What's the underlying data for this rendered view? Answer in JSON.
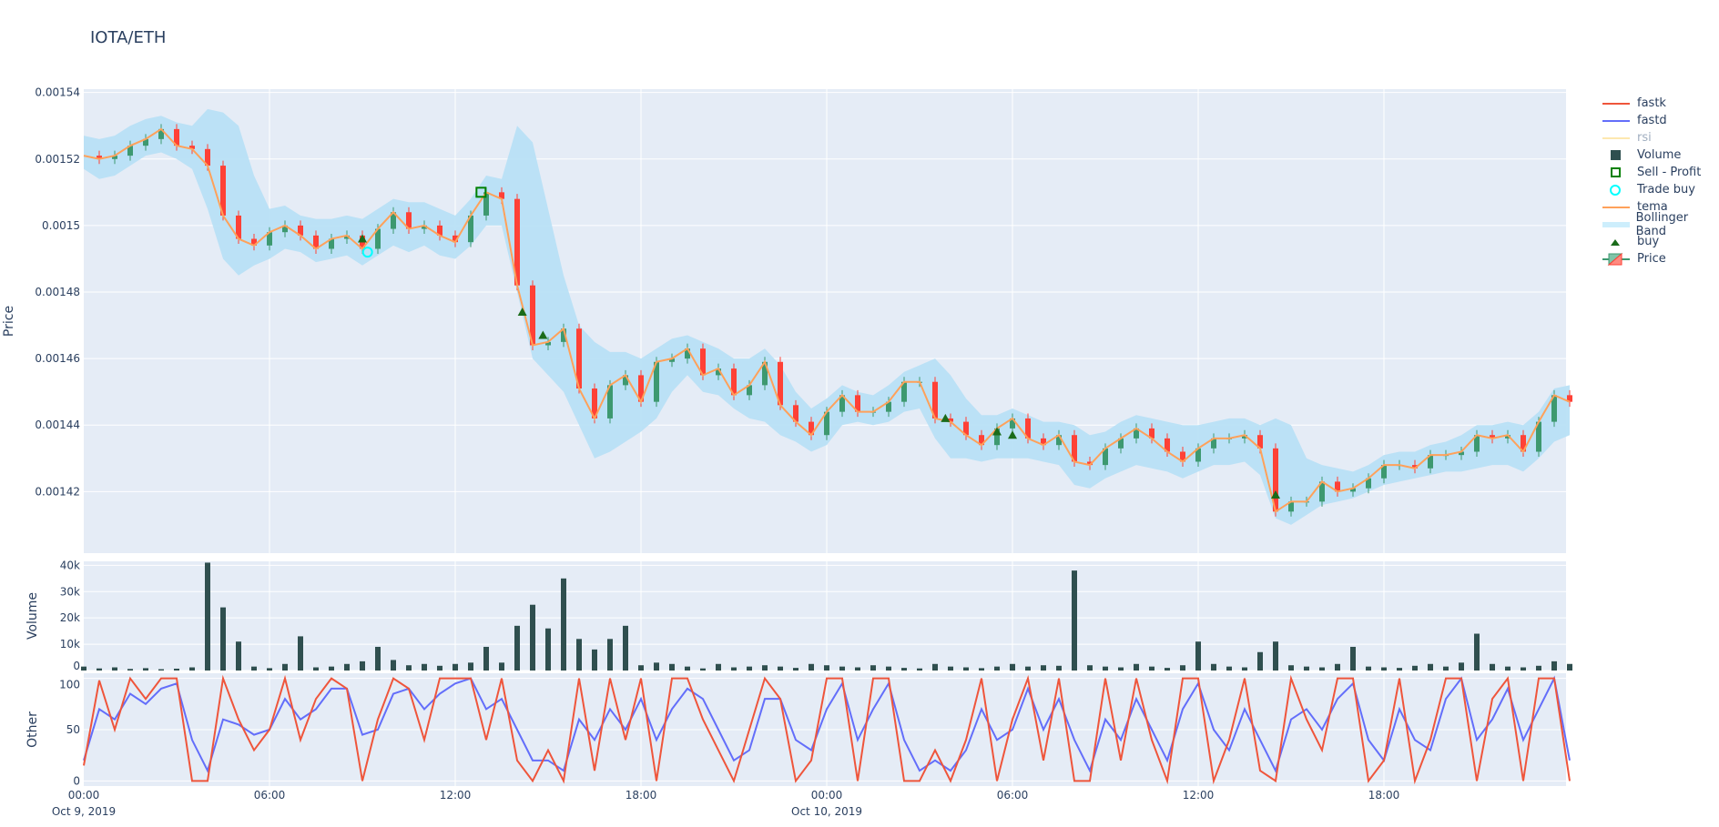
{
  "title": "IOTA/ETH",
  "colors": {
    "plot_bg": "#e5ecf6",
    "grid": "#ffffff",
    "fastk": "#ef553b",
    "fastd": "#636efa",
    "rsi": "#fde8b0",
    "volume": "#2f4f4f",
    "sell_profit": "#008000",
    "trade_buy": "#00ffff",
    "tema": "#ffa15a",
    "bollinger": "#b8e0f5",
    "buy": "#1a6b1a",
    "increasing": "#3d9970",
    "decreasing": "#ff4136"
  },
  "legend": [
    {
      "name": "fastk",
      "icon": "line",
      "dim": false
    },
    {
      "name": "fastd",
      "icon": "line",
      "dim": false
    },
    {
      "name": "rsi",
      "icon": "line",
      "dim": true
    },
    {
      "name": "Volume",
      "icon": "square",
      "dim": false
    },
    {
      "name": "Sell - Profit",
      "icon": "square-open",
      "dim": false
    },
    {
      "name": "Trade buy",
      "icon": "circle-open",
      "dim": false
    },
    {
      "name": "tema",
      "icon": "line",
      "dim": false
    },
    {
      "name": "Bollinger Band",
      "icon": "band",
      "dim": false
    },
    {
      "name": "buy",
      "icon": "triangle-up",
      "dim": false
    },
    {
      "name": "Price",
      "icon": "candlestick",
      "dim": false
    }
  ],
  "chart_data": {
    "type": "line",
    "title": "IOTA/ETH",
    "xaxis": {
      "range": [
        "2019-10-09 00:00",
        "2019-10-10 23:55"
      ],
      "ticks": [
        {
          "label": "00:00",
          "sub": "Oct 9, 2019",
          "hour": 0
        },
        {
          "label": "06:00",
          "sub": "",
          "hour": 6
        },
        {
          "label": "12:00",
          "sub": "",
          "hour": 12
        },
        {
          "label": "18:00",
          "sub": "",
          "hour": 18
        },
        {
          "label": "00:00",
          "sub": "Oct 10, 2019",
          "hour": 24
        },
        {
          "label": "06:00",
          "sub": "",
          "hour": 30
        },
        {
          "label": "12:00",
          "sub": "",
          "hour": 36
        },
        {
          "label": "18:00",
          "sub": "",
          "hour": 42
        }
      ],
      "interval_minutes": 30
    },
    "panels": {
      "price": {
        "ylabel": "Price",
        "ylim": [
          0.0014015,
          0.001541
        ],
        "ticks": [
          0.00142,
          0.00144,
          0.00146,
          0.00148,
          0.0015,
          0.00152,
          0.00154
        ],
        "tick_labels": [
          "0.00142",
          "0.00144",
          "0.00146",
          "0.00148",
          "0.0015",
          "0.00152",
          "0.00154"
        ]
      },
      "volume": {
        "ylabel": "Volume",
        "ylim": [
          0,
          41500
        ],
        "ticks": [
          0,
          10000,
          20000,
          30000,
          40000
        ],
        "tick_labels": [
          "0",
          "10k",
          "20k",
          "30k",
          "40k"
        ]
      },
      "other": {
        "ylabel": "Other",
        "ylim": [
          -5,
          105
        ],
        "ticks": [
          0,
          50,
          100
        ],
        "tick_labels": [
          "0",
          "50",
          "100"
        ]
      }
    },
    "close": [
      0.001521,
      0.00152,
      0.001521,
      0.001524,
      0.001526,
      0.001529,
      0.001524,
      0.001523,
      0.001518,
      0.001503,
      0.001496,
      0.001494,
      0.001498,
      0.0015,
      0.001497,
      0.001493,
      0.001496,
      0.001497,
      0.001493,
      0.001499,
      0.001504,
      0.001499,
      0.0015,
      0.001497,
      0.001495,
      0.001503,
      0.00151,
      0.001508,
      0.001482,
      0.001464,
      0.001465,
      0.001469,
      0.001451,
      0.001442,
      0.001452,
      0.001455,
      0.001447,
      0.001459,
      0.00146,
      0.001463,
      0.001455,
      0.001457,
      0.001449,
      0.001452,
      0.001459,
      0.001446,
      0.001441,
      0.001437,
      0.001444,
      0.001449,
      0.001444,
      0.001444,
      0.001447,
      0.001453,
      0.001453,
      0.001442,
      0.001441,
      0.001437,
      0.001434,
      0.001439,
      0.001442,
      0.001436,
      0.001434,
      0.001437,
      0.001429,
      0.001428,
      0.001433,
      0.001436,
      0.001439,
      0.001436,
      0.001432,
      0.001429,
      0.001433,
      0.001436,
      0.001436,
      0.001437,
      0.001433,
      0.001414,
      0.001417,
      0.001417,
      0.001423,
      0.00142,
      0.001421,
      0.001424,
      0.001428,
      0.001428,
      0.001427,
      0.001431,
      0.001431,
      0.001432,
      0.001437,
      0.001436,
      0.001437,
      0.001432,
      0.001441,
      0.001449,
      0.001447
    ],
    "bollinger_upper": [
      0.001527,
      0.001526,
      0.001527,
      0.00153,
      0.001532,
      0.001533,
      0.001531,
      0.00153,
      0.001535,
      0.001534,
      0.00153,
      0.001515,
      0.001505,
      0.001506,
      0.001503,
      0.001502,
      0.001502,
      0.001503,
      0.001502,
      0.001505,
      0.001508,
      0.001507,
      0.001507,
      0.001505,
      0.001503,
      0.001508,
      0.001515,
      0.001514,
      0.00153,
      0.001525,
      0.001505,
      0.001485,
      0.00147,
      0.001465,
      0.001462,
      0.001462,
      0.00146,
      0.001463,
      0.001466,
      0.001467,
      0.001465,
      0.001463,
      0.00146,
      0.00146,
      0.001463,
      0.001458,
      0.00145,
      0.001445,
      0.001448,
      0.001452,
      0.00145,
      0.001449,
      0.001452,
      0.001456,
      0.001458,
      0.00146,
      0.001455,
      0.001448,
      0.001443,
      0.001443,
      0.001445,
      0.001443,
      0.001441,
      0.001441,
      0.00144,
      0.001437,
      0.001438,
      0.001441,
      0.001443,
      0.001442,
      0.001441,
      0.00144,
      0.00144,
      0.001441,
      0.001442,
      0.001442,
      0.00144,
      0.001442,
      0.00144,
      0.00143,
      0.001428,
      0.001427,
      0.001426,
      0.001428,
      0.001431,
      0.001432,
      0.001432,
      0.001434,
      0.001435,
      0.001437,
      0.00144,
      0.00144,
      0.001441,
      0.00144,
      0.001444,
      0.001451,
      0.001452
    ],
    "bollinger_lower": [
      0.001517,
      0.001514,
      0.001515,
      0.001518,
      0.001521,
      0.001522,
      0.00152,
      0.001517,
      0.001505,
      0.00149,
      0.001485,
      0.001488,
      0.00149,
      0.001493,
      0.001492,
      0.001489,
      0.00149,
      0.001491,
      0.001488,
      0.001491,
      0.001494,
      0.001492,
      0.001494,
      0.001491,
      0.00149,
      0.001494,
      0.0015,
      0.0015,
      0.00148,
      0.00146,
      0.001455,
      0.00145,
      0.00144,
      0.00143,
      0.001432,
      0.001435,
      0.001438,
      0.001442,
      0.00145,
      0.001455,
      0.00145,
      0.001449,
      0.001445,
      0.001442,
      0.001441,
      0.001437,
      0.001435,
      0.001432,
      0.001434,
      0.00144,
      0.001441,
      0.00144,
      0.001441,
      0.001444,
      0.001445,
      0.001436,
      0.00143,
      0.00143,
      0.001429,
      0.00143,
      0.00143,
      0.00143,
      0.001429,
      0.001428,
      0.001422,
      0.001421,
      0.001424,
      0.001426,
      0.001428,
      0.001427,
      0.001426,
      0.001424,
      0.001426,
      0.001428,
      0.001428,
      0.001429,
      0.001425,
      0.001412,
      0.00141,
      0.001413,
      0.001416,
      0.001417,
      0.001418,
      0.00142,
      0.001422,
      0.001423,
      0.001424,
      0.001425,
      0.001426,
      0.001426,
      0.001427,
      0.001428,
      0.001428,
      0.001426,
      0.00143,
      0.001435,
      0.001437
    ],
    "volume": [
      1500,
      800,
      1200,
      600,
      900,
      500,
      700,
      1200,
      41000,
      24000,
      11000,
      1500,
      900,
      2500,
      13000,
      1200,
      1500,
      2500,
      3500,
      9000,
      4000,
      2000,
      2500,
      1800,
      2500,
      3000,
      9000,
      3000,
      17000,
      25000,
      16000,
      35000,
      12000,
      8000,
      12000,
      17000,
      2000,
      3000,
      2500,
      1500,
      800,
      2500,
      1200,
      1500,
      2000,
      1500,
      1000,
      2500,
      2000,
      1500,
      1200,
      2000,
      1500,
      1000,
      800,
      2500,
      1500,
      1200,
      900,
      1500,
      2500,
      1500,
      2000,
      1800,
      38000,
      2000,
      1500,
      1200,
      2500,
      1500,
      1000,
      2000,
      11000,
      2500,
      1500,
      1200,
      7000,
      11000,
      2000,
      1500,
      1200,
      2500,
      9000,
      1500,
      1200,
      1000,
      1800,
      2500,
      1500,
      3000,
      14000,
      2500,
      1500,
      1200,
      1800,
      3500,
      2500
    ],
    "fastk": [
      15,
      98,
      50,
      100,
      80,
      100,
      100,
      0,
      0,
      100,
      60,
      30,
      50,
      100,
      40,
      80,
      100,
      90,
      0,
      60,
      100,
      90,
      40,
      100,
      100,
      100,
      40,
      100,
      20,
      0,
      30,
      0,
      100,
      10,
      100,
      40,
      100,
      0,
      100,
      100,
      60,
      30,
      0,
      50,
      100,
      80,
      0,
      20,
      100,
      100,
      0,
      100,
      100,
      0,
      0,
      30,
      0,
      40,
      100,
      0,
      60,
      100,
      20,
      100,
      0,
      0,
      100,
      20,
      100,
      40,
      0,
      100,
      100,
      0,
      40,
      100,
      10,
      0,
      100,
      60,
      30,
      100,
      100,
      0,
      20,
      100,
      0,
      40,
      100,
      100,
      0,
      80,
      100,
      0,
      100,
      100,
      0
    ],
    "fastd": [
      20,
      70,
      60,
      85,
      75,
      90,
      95,
      40,
      10,
      60,
      55,
      45,
      50,
      80,
      60,
      70,
      90,
      90,
      45,
      50,
      85,
      90,
      70,
      85,
      95,
      100,
      70,
      80,
      50,
      20,
      20,
      10,
      60,
      40,
      70,
      50,
      80,
      40,
      70,
      90,
      80,
      50,
      20,
      30,
      80,
      80,
      40,
      30,
      70,
      95,
      40,
      70,
      95,
      40,
      10,
      20,
      10,
      30,
      70,
      40,
      50,
      90,
      50,
      80,
      40,
      10,
      60,
      40,
      80,
      50,
      20,
      70,
      95,
      50,
      30,
      70,
      40,
      10,
      60,
      70,
      50,
      80,
      95,
      40,
      20,
      70,
      40,
      30,
      80,
      100,
      40,
      60,
      90,
      40,
      70,
      100,
      20
    ],
    "markers": {
      "buy": [
        {
          "x": "2019-10-09 09:00",
          "y": 0.001496
        },
        {
          "x": "2019-10-09 14:10",
          "y": 0.001474
        },
        {
          "x": "2019-10-09 14:50",
          "y": 0.001467
        },
        {
          "x": "2019-10-10 03:50",
          "y": 0.001442
        },
        {
          "x": "2019-10-10 05:30",
          "y": 0.001438
        },
        {
          "x": "2019-10-10 06:00",
          "y": 0.001437
        },
        {
          "x": "2019-10-10 14:30",
          "y": 0.001419
        }
      ],
      "trade_buy": [
        {
          "x": "2019-10-09 09:10",
          "y": 0.001492
        }
      ],
      "sell_profit": [
        {
          "x": "2019-10-09 12:50",
          "y": 0.00151
        }
      ]
    },
    "grid": true,
    "legend_position": "right"
  }
}
